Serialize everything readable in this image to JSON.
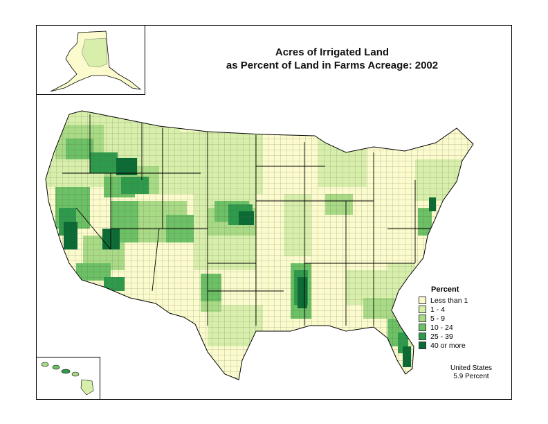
{
  "title": {
    "line1": "Acres of Irrigated Land",
    "line2": "as Percent of Land in Farms Acreage:  2002"
  },
  "legend": {
    "title": "Percent",
    "items": [
      {
        "label": "Less than 1",
        "color": "#fbfbcd"
      },
      {
        "label": "1 - 4",
        "color": "#d7efab"
      },
      {
        "label": "5 - 9",
        "color": "#a9db86"
      },
      {
        "label": "10 - 24",
        "color": "#6cc065"
      },
      {
        "label": "25 - 39",
        "color": "#2e9a4b"
      },
      {
        "label": "40 or more",
        "color": "#0b6b34"
      }
    ]
  },
  "summary": {
    "line1": "United States",
    "line2": "5.9 Percent"
  },
  "colors": {
    "border": "#000000",
    "background": "#ffffff"
  }
}
